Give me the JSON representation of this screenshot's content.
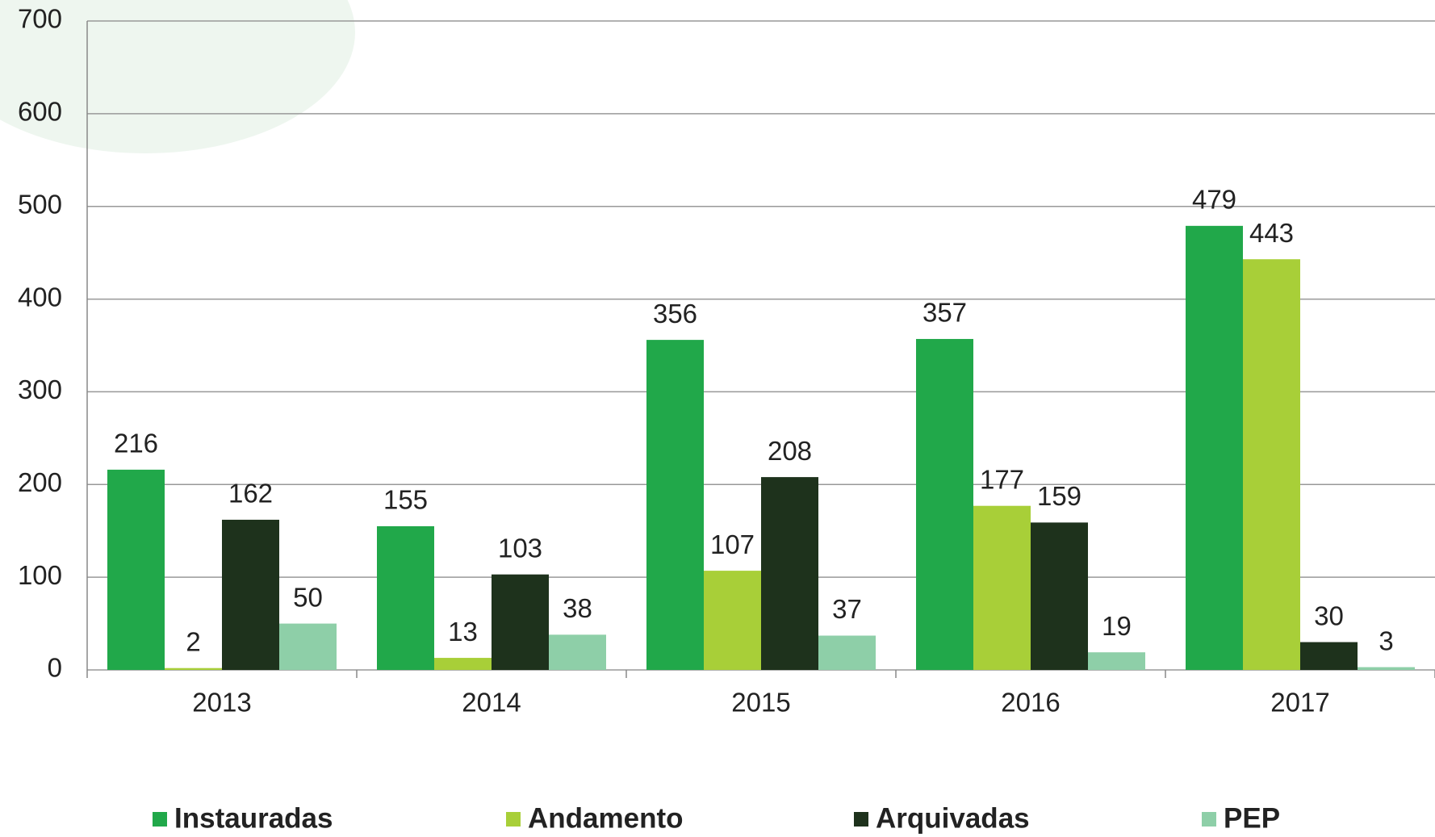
{
  "chart_data": {
    "type": "bar",
    "categories": [
      "2013",
      "2014",
      "2015",
      "2016",
      "2017"
    ],
    "series": [
      {
        "name": "Instauradas",
        "color": "#21a84a",
        "values": [
          216,
          155,
          356,
          357,
          479
        ]
      },
      {
        "name": "Andamento",
        "color": "#a8cf38",
        "values": [
          2,
          13,
          107,
          177,
          443
        ]
      },
      {
        "name": "Arquivadas",
        "color": "#1e321c",
        "values": [
          162,
          103,
          208,
          159,
          30
        ]
      },
      {
        "name": "PEP",
        "color": "#8ecfa8",
        "values": [
          50,
          38,
          37,
          19,
          3
        ]
      }
    ],
    "ylim": [
      0,
      700
    ],
    "yticks": [
      0,
      100,
      200,
      300,
      400,
      500,
      600,
      700
    ],
    "grid": true
  }
}
